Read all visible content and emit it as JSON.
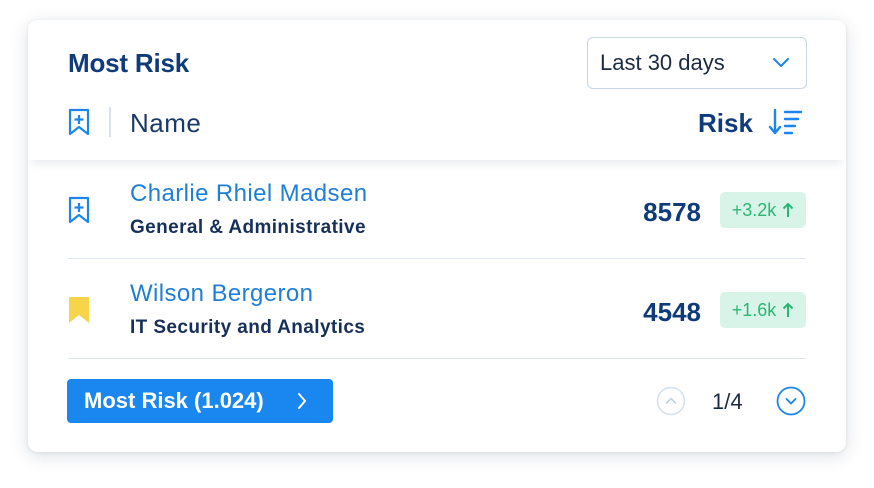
{
  "header": {
    "title": "Most Risk",
    "period": {
      "selected": "Last 30 days",
      "icon": "chevron-down-icon"
    },
    "columns": {
      "name": "Name",
      "risk": "Risk",
      "sort_icon": "sort-descending-icon",
      "bookmark_icon": "bookmark-add-icon"
    }
  },
  "rows": [
    {
      "name": "Charlie Rhiel Madsen",
      "department": "General & Administrative",
      "score": "8578",
      "delta": "+3.2k",
      "bookmarked": false,
      "bookmark_icon": "bookmark-add-icon"
    },
    {
      "name": "Wilson Bergeron",
      "department": "IT Security and Analytics",
      "score": "4548",
      "delta": "+1.6k",
      "bookmarked": true,
      "bookmark_icon": "bookmark-filled-icon"
    }
  ],
  "footer": {
    "more_button": "Most Risk (1.024)",
    "page_indicator": "1/4"
  },
  "colors": {
    "primary": "#1a86f0",
    "title": "#0f3b78",
    "link": "#1f7fd6",
    "positive": "#2bb673",
    "positive_bg": "#d8f4e8",
    "bookmark_filled": "#f7d44a"
  }
}
